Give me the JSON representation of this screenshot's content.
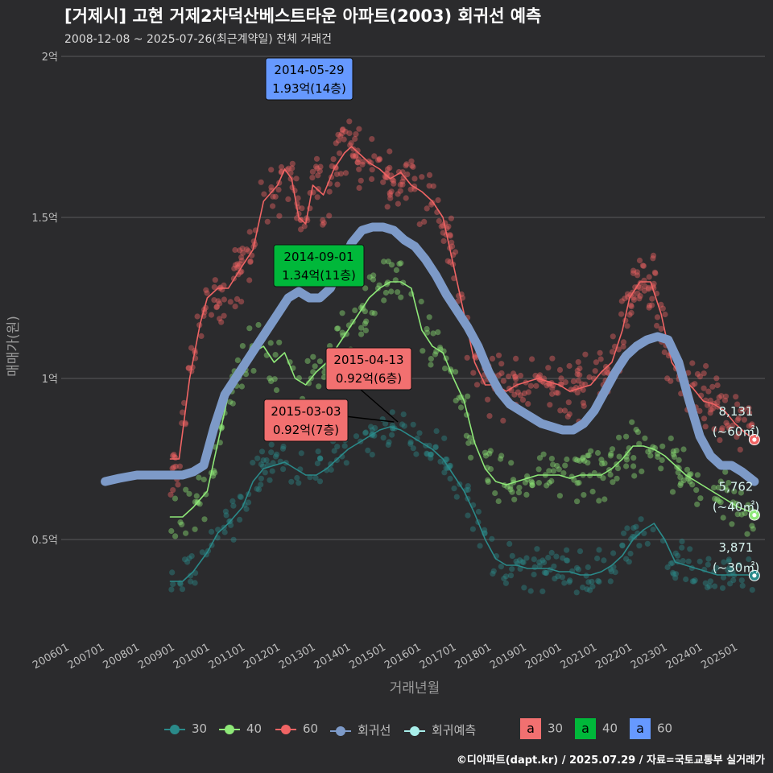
{
  "title": "[거제시] 고현 거제2차덕산베스트타운 아파트(2003) 회귀선 예측",
  "subtitle": "2008-12-08 ~ 2025-07-26(최근계약일) 전체 거래건",
  "caption": "©디아파트(dapt.kr) / 2025.07.29 / 자료=국토교통부 실거래가",
  "colors": {
    "background": "#2b2b2d",
    "s30": "#2a8a8a",
    "s40": "#8ee878",
    "s60": "#f06464",
    "regression": "#7d9ac8",
    "forecast": "#a8eeea",
    "box30": "#f27070",
    "box40": "#00b83a",
    "box60": "#6699ff"
  },
  "chart_data": {
    "type": "line",
    "title": "[거제시] 고현 거제2차덕산베스트타운 아파트(2003) 회귀선 예측",
    "xlabel": "거래년월",
    "ylabel": "매매가(원)",
    "x_ticks": [
      "200601",
      "200701",
      "200801",
      "200901",
      "201001",
      "201101",
      "201201",
      "201301",
      "201401",
      "201501",
      "201601",
      "201701",
      "201801",
      "201901",
      "202001",
      "202101",
      "202201",
      "202301",
      "202401",
      "202501"
    ],
    "xlim": [
      2005.85,
      2025.85
    ],
    "y_ticks": [
      {
        "v": 0.5,
        "label": "0.5억"
      },
      {
        "v": 1.0,
        "label": "1억"
      },
      {
        "v": 1.5,
        "label": "1.5억"
      },
      {
        "v": 2.0,
        "label": "2억"
      }
    ],
    "ylim": [
      0.2,
      2.0
    ],
    "y_unit": "억 원",
    "series": [
      {
        "name": "60",
        "color": "#f06464",
        "x": [
          2008.95,
          2009.2,
          2009.5,
          2009.8,
          2010.0,
          2010.3,
          2010.6,
          2011.0,
          2011.3,
          2011.6,
          2012.0,
          2012.2,
          2012.4,
          2012.6,
          2012.8,
          2013.0,
          2013.3,
          2013.6,
          2013.9,
          2014.1,
          2014.3,
          2014.6,
          2014.9,
          2015.2,
          2015.5,
          2015.8,
          2016.1,
          2016.4,
          2016.7,
          2017.0,
          2017.3,
          2017.6,
          2017.9,
          2018.2,
          2018.5,
          2018.8,
          2019.1,
          2019.4,
          2019.7,
          2020.0,
          2020.3,
          2020.6,
          2020.9,
          2021.2,
          2021.5,
          2021.8,
          2022.0,
          2022.3,
          2022.6,
          2022.9,
          2023.2,
          2023.5,
          2023.8,
          2024.1,
          2024.4,
          2024.7,
          2025.0,
          2025.3,
          2025.55
        ],
        "values": [
          0.75,
          0.75,
          1.0,
          1.17,
          1.25,
          1.28,
          1.28,
          1.35,
          1.4,
          1.55,
          1.6,
          1.65,
          1.62,
          1.5,
          1.48,
          1.6,
          1.57,
          1.65,
          1.7,
          1.72,
          1.7,
          1.67,
          1.65,
          1.62,
          1.64,
          1.6,
          1.58,
          1.55,
          1.5,
          1.35,
          1.2,
          1.05,
          0.98,
          0.98,
          0.96,
          0.98,
          0.99,
          1.0,
          0.99,
          0.98,
          0.96,
          0.97,
          0.98,
          1.02,
          1.05,
          1.15,
          1.25,
          1.3,
          1.3,
          1.2,
          1.05,
          1.0,
          0.97,
          0.93,
          0.92,
          0.9,
          0.86,
          0.83,
          0.81
        ]
      },
      {
        "name": "40",
        "color": "#8ee878",
        "x": [
          2008.95,
          2009.3,
          2009.6,
          2010.0,
          2010.3,
          2010.6,
          2011.0,
          2011.3,
          2011.6,
          2011.9,
          2012.2,
          2012.5,
          2012.8,
          2013.1,
          2013.4,
          2013.7,
          2014.0,
          2014.3,
          2014.6,
          2014.9,
          2015.2,
          2015.5,
          2015.8,
          2016.1,
          2016.4,
          2016.7,
          2017.0,
          2017.3,
          2017.6,
          2017.9,
          2018.2,
          2018.5,
          2018.8,
          2019.1,
          2019.4,
          2019.7,
          2020.0,
          2020.3,
          2020.6,
          2020.9,
          2021.2,
          2021.5,
          2021.8,
          2022.1,
          2022.4,
          2022.7,
          2023.0,
          2023.3,
          2023.6,
          2023.9,
          2024.2,
          2024.5,
          2024.8,
          2025.1,
          2025.35,
          2025.55
        ],
        "values": [
          0.57,
          0.57,
          0.6,
          0.65,
          0.8,
          0.95,
          1.02,
          1.08,
          1.1,
          1.05,
          1.08,
          1.0,
          0.98,
          1.02,
          1.05,
          1.1,
          1.15,
          1.2,
          1.25,
          1.28,
          1.3,
          1.3,
          1.28,
          1.15,
          1.1,
          1.08,
          1.0,
          0.93,
          0.8,
          0.72,
          0.68,
          0.67,
          0.68,
          0.69,
          0.7,
          0.7,
          0.7,
          0.69,
          0.7,
          0.7,
          0.7,
          0.72,
          0.75,
          0.79,
          0.79,
          0.78,
          0.76,
          0.73,
          0.7,
          0.68,
          0.66,
          0.64,
          0.62,
          0.6,
          0.59,
          0.576
        ]
      },
      {
        "name": "30",
        "color": "#2a8a8a",
        "x": [
          2008.95,
          2009.3,
          2009.6,
          2010.0,
          2010.3,
          2010.6,
          2011.0,
          2011.3,
          2011.6,
          2011.9,
          2012.2,
          2012.5,
          2012.8,
          2013.1,
          2013.4,
          2013.7,
          2014.0,
          2014.3,
          2014.6,
          2014.9,
          2015.2,
          2015.5,
          2015.8,
          2016.1,
          2016.4,
          2016.7,
          2017.0,
          2017.3,
          2017.6,
          2017.9,
          2018.2,
          2018.5,
          2018.8,
          2019.1,
          2019.4,
          2019.7,
          2020.0,
          2020.3,
          2020.6,
          2020.9,
          2021.2,
          2021.5,
          2021.8,
          2022.1,
          2022.4,
          2022.7,
          2023.0,
          2023.3,
          2023.6,
          2023.9,
          2024.2,
          2024.5,
          2024.8,
          2025.1,
          2025.35,
          2025.55
        ],
        "values": [
          0.37,
          0.37,
          0.4,
          0.46,
          0.52,
          0.55,
          0.6,
          0.68,
          0.72,
          0.73,
          0.74,
          0.72,
          0.7,
          0.7,
          0.72,
          0.75,
          0.78,
          0.8,
          0.82,
          0.84,
          0.85,
          0.84,
          0.82,
          0.8,
          0.78,
          0.75,
          0.7,
          0.65,
          0.58,
          0.5,
          0.44,
          0.42,
          0.42,
          0.41,
          0.41,
          0.41,
          0.4,
          0.4,
          0.39,
          0.39,
          0.4,
          0.42,
          0.45,
          0.5,
          0.53,
          0.55,
          0.5,
          0.43,
          0.42,
          0.41,
          0.4,
          0.39,
          0.39,
          0.39,
          0.39,
          0.388
        ]
      },
      {
        "name": "회귀선",
        "color": "#7d9ac8",
        "x": [
          2007.1,
          2007.5,
          2008.0,
          2008.5,
          2009.0,
          2009.3,
          2009.6,
          2009.9,
          2010.2,
          2010.5,
          2010.8,
          2011.1,
          2011.4,
          2011.7,
          2012.0,
          2012.3,
          2012.6,
          2012.9,
          2013.2,
          2013.5,
          2013.8,
          2014.1,
          2014.4,
          2014.7,
          2015.0,
          2015.3,
          2015.6,
          2015.9,
          2016.2,
          2016.5,
          2016.8,
          2017.1,
          2017.4,
          2017.7,
          2018.0,
          2018.3,
          2018.6,
          2018.9,
          2019.2,
          2019.5,
          2019.8,
          2020.1,
          2020.4,
          2020.7,
          2021.0,
          2021.3,
          2021.6,
          2021.9,
          2022.2,
          2022.5,
          2022.8,
          2023.1,
          2023.4,
          2023.7,
          2024.0,
          2024.3,
          2024.6,
          2024.9,
          2025.2,
          2025.55
        ],
        "values": [
          0.68,
          0.69,
          0.7,
          0.7,
          0.7,
          0.7,
          0.71,
          0.73,
          0.85,
          0.95,
          1.0,
          1.05,
          1.1,
          1.15,
          1.2,
          1.25,
          1.27,
          1.25,
          1.25,
          1.28,
          1.35,
          1.42,
          1.46,
          1.47,
          1.47,
          1.46,
          1.43,
          1.41,
          1.37,
          1.32,
          1.26,
          1.21,
          1.16,
          1.1,
          1.02,
          0.96,
          0.92,
          0.9,
          0.88,
          0.86,
          0.85,
          0.84,
          0.84,
          0.86,
          0.9,
          0.96,
          1.02,
          1.07,
          1.1,
          1.12,
          1.13,
          1.12,
          1.05,
          0.93,
          0.82,
          0.76,
          0.73,
          0.73,
          0.71,
          0.68
        ]
      }
    ],
    "forecast_points": [
      {
        "series": "60",
        "x": 2025.55,
        "value": 0.81,
        "count": "8,131",
        "area": "(~60㎡)"
      },
      {
        "series": "40",
        "x": 2025.55,
        "value": 0.576,
        "count": "5,762",
        "area": "(~40㎡)"
      },
      {
        "series": "30",
        "x": 2025.55,
        "value": 0.388,
        "count": "3,871",
        "area": "(~30㎡)"
      }
    ],
    "annotations": [
      {
        "date": "2014-05-29",
        "price": "1.93억(14층)",
        "series": "60",
        "x": 2014.41,
        "value": 1.93
      },
      {
        "date": "2014-09-01",
        "price": "1.34억(11층)",
        "series": "40",
        "x": 2014.67,
        "value": 1.34
      },
      {
        "date": "2015-04-13",
        "price": "0.92억(6층)",
        "series": "30",
        "x": 2015.28,
        "value": 0.92
      },
      {
        "date": "2015-03-03",
        "price": "0.92억(7층)",
        "series": "30",
        "x": 2015.17,
        "value": 0.92
      }
    ],
    "legend": {
      "position": "bottom",
      "line_items": [
        {
          "label": "30",
          "color": "#2a8a8a"
        },
        {
          "label": "40",
          "color": "#8ee878"
        },
        {
          "label": "60",
          "color": "#f06464"
        },
        {
          "label": "회귀선",
          "color": "#7d9ac8"
        },
        {
          "label": "회귀예측",
          "color": "#a8eeea"
        }
      ],
      "box_items": [
        {
          "label": "30",
          "letter": "a",
          "color": "#f27070"
        },
        {
          "label": "40",
          "letter": "a",
          "color": "#00b83a"
        },
        {
          "label": "60",
          "letter": "a",
          "color": "#6699ff"
        }
      ]
    }
  }
}
